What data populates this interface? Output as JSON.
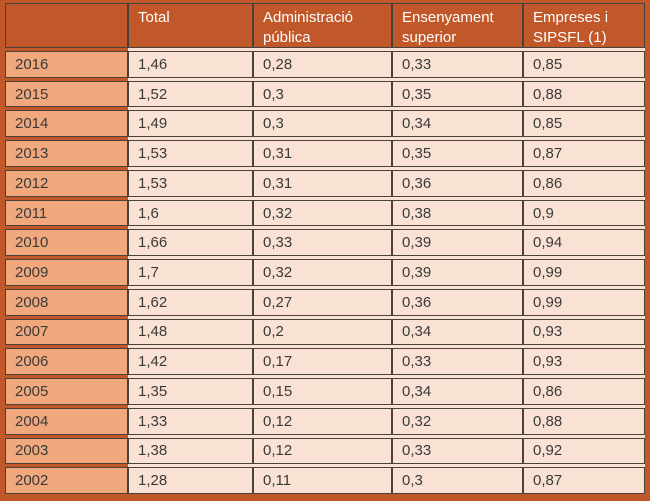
{
  "colors": {
    "frame_and_header": "#c1582a",
    "header_text": "#ffffff",
    "year_column_bg": "#f0a87c",
    "data_cell_bg": "#f9e2d4",
    "grid_line": "#49423b",
    "cell_text": "#3a3a3a"
  },
  "chart_data": {
    "type": "table",
    "columns": [
      "",
      "Total",
      "Administració pública",
      "Ensenyament superior",
      "Empreses i SIPSFL (1)"
    ],
    "rows": [
      [
        "2016",
        "1,46",
        "0,28",
        "0,33",
        "0,85"
      ],
      [
        "2015",
        "1,52",
        "0,3",
        "0,35",
        "0,88"
      ],
      [
        "2014",
        "1,49",
        "0,3",
        "0,34",
        "0,85"
      ],
      [
        "2013",
        "1,53",
        "0,31",
        "0,35",
        "0,87"
      ],
      [
        "2012",
        "1,53",
        "0,31",
        "0,36",
        "0,86"
      ],
      [
        "2011",
        "1,6",
        "0,32",
        "0,38",
        "0,9"
      ],
      [
        "2010",
        "1,66",
        "0,33",
        "0,39",
        "0,94"
      ],
      [
        "2009",
        "1,7",
        "0,32",
        "0,39",
        "0,99"
      ],
      [
        "2008",
        "1,62",
        "0,27",
        "0,36",
        "0,99"
      ],
      [
        "2007",
        "1,48",
        "0,2",
        "0,34",
        "0,93"
      ],
      [
        "2006",
        "1,42",
        "0,17",
        "0,33",
        "0,93"
      ],
      [
        "2005",
        "1,35",
        "0,15",
        "0,34",
        "0,86"
      ],
      [
        "2004",
        "1,33",
        "0,12",
        "0,32",
        "0,88"
      ],
      [
        "2003",
        "1,38",
        "0,12",
        "0,33",
        "0,92"
      ],
      [
        "2002",
        "1,28",
        "0,11",
        "0,3",
        "0,87"
      ]
    ],
    "title": "",
    "layout_hints": {
      "decimal_separator": ",",
      "header_row": true,
      "first_column_is_year": true
    }
  }
}
